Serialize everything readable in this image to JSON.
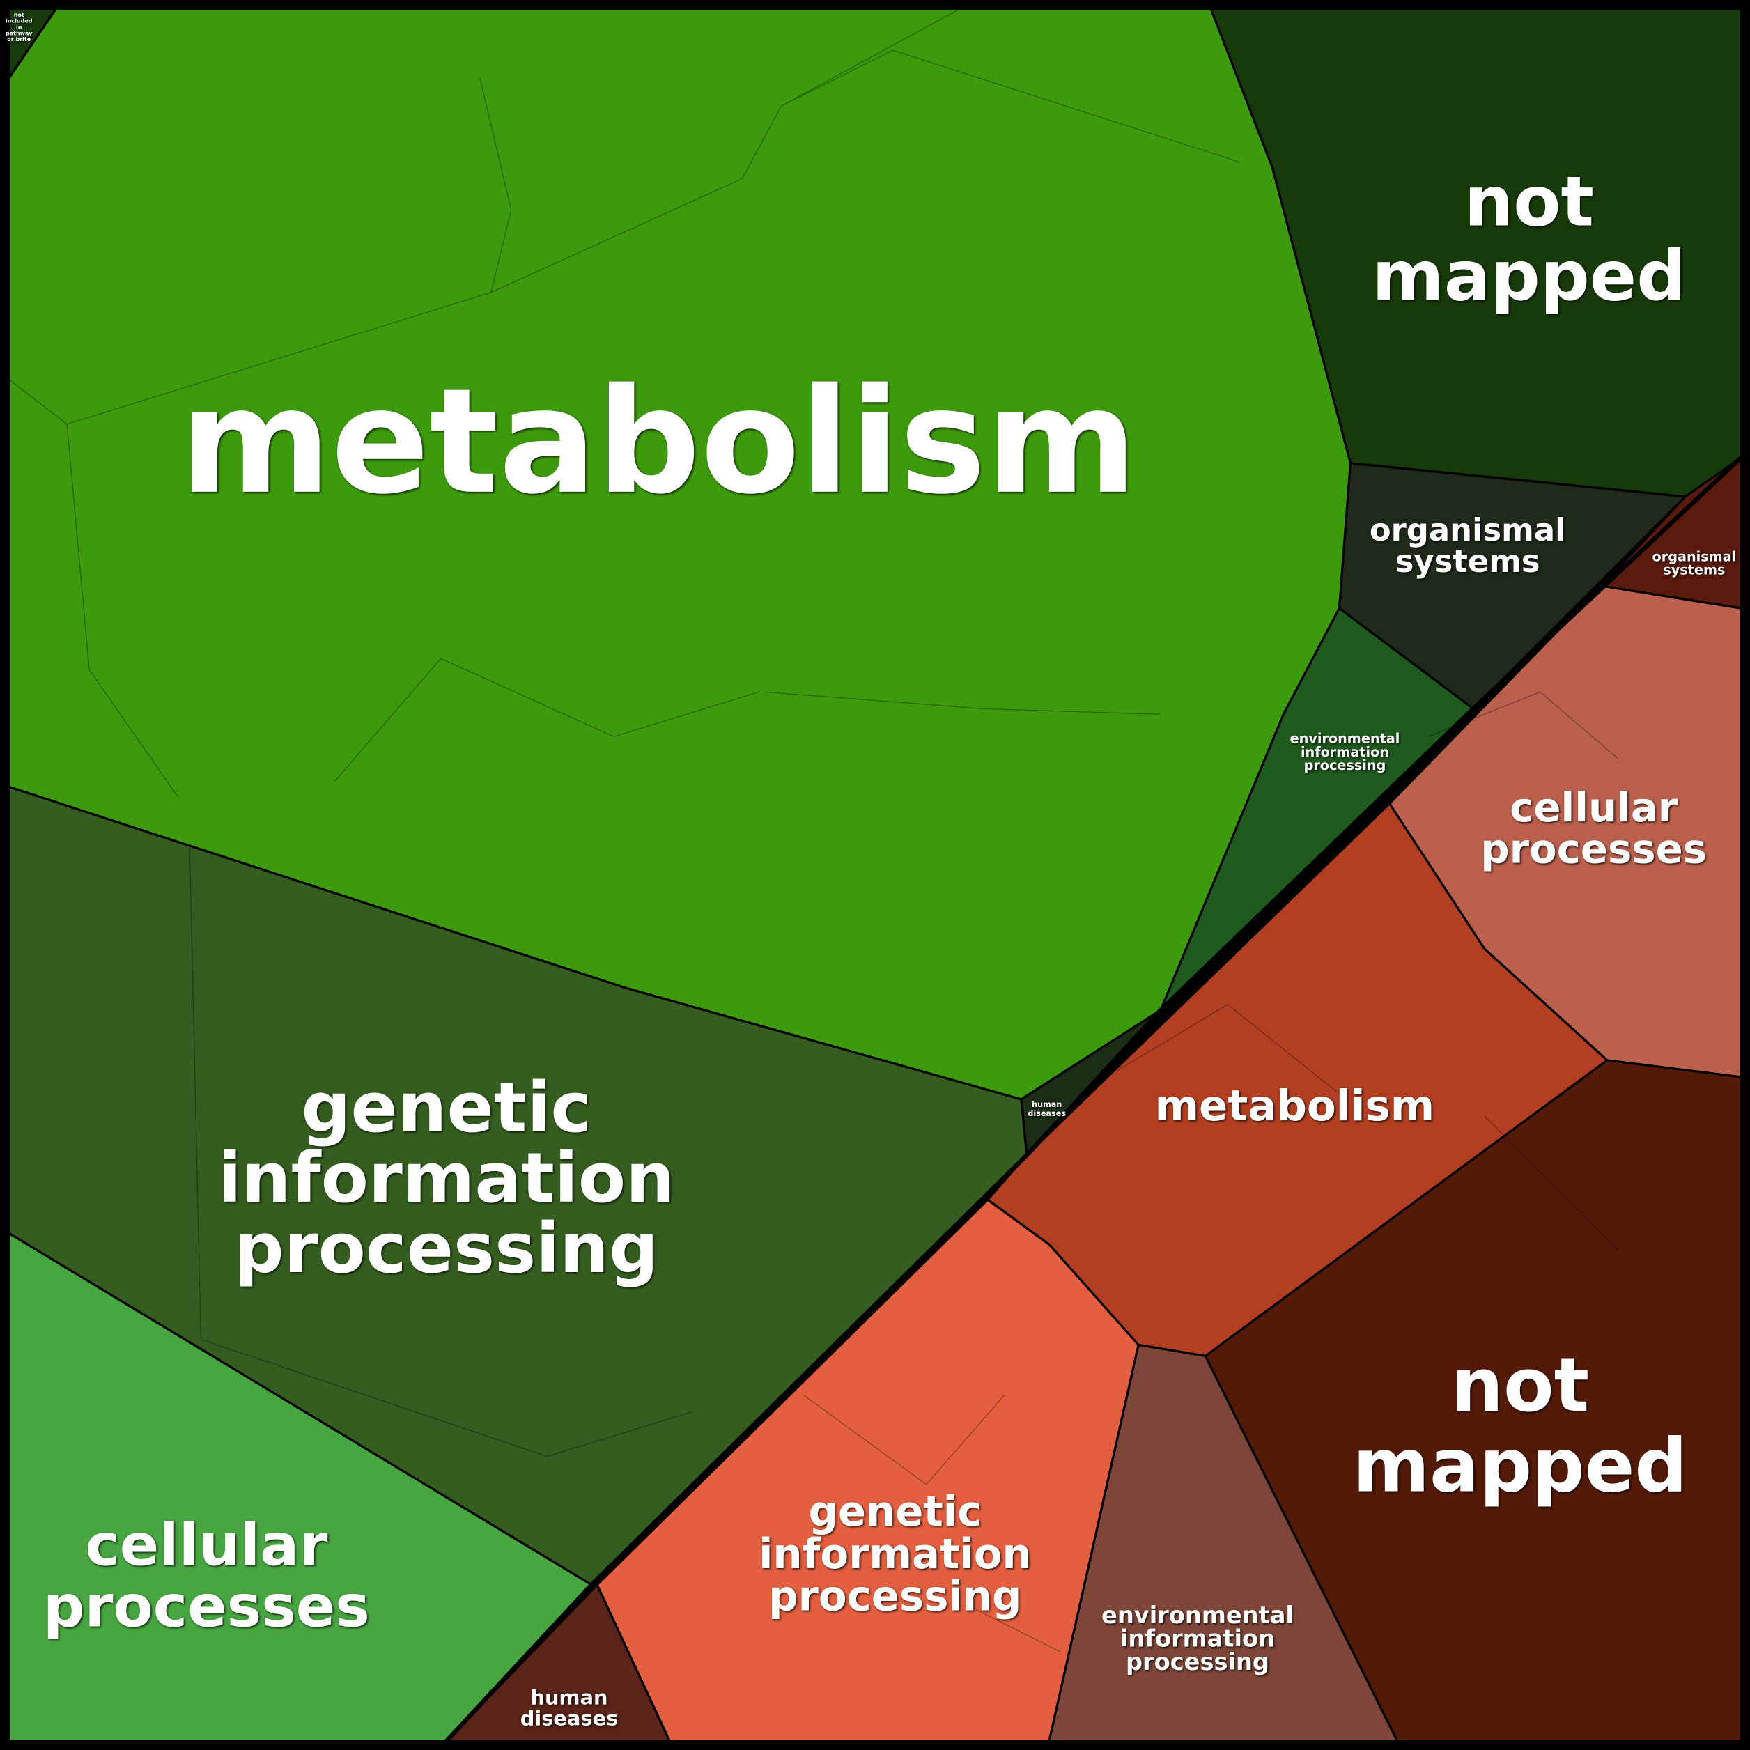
{
  "regions": [
    {
      "label": [
        "metabolism"
      ]
    },
    {
      "label": [
        "not",
        "mapped"
      ]
    },
    {
      "label": [
        "organismal",
        "systems"
      ]
    },
    {
      "label": [
        "environmental",
        "information",
        "processing"
      ]
    },
    {
      "label": [
        "human",
        "diseases"
      ]
    },
    {
      "label": [
        "genetic",
        "information",
        "processing"
      ]
    },
    {
      "label": [
        "cellular",
        "processes"
      ]
    },
    {
      "label": [
        "not",
        "included",
        "in",
        "pathway",
        "or brite"
      ]
    },
    {
      "label": [
        "organismal",
        "systems"
      ]
    },
    {
      "label": [
        "cellular",
        "processes"
      ]
    },
    {
      "label": [
        "metabolism"
      ]
    },
    {
      "label": [
        "not",
        "mapped"
      ]
    },
    {
      "label": [
        "genetic",
        "information",
        "processing"
      ]
    },
    {
      "label": [
        "environmental",
        "information",
        "processing"
      ]
    },
    {
      "label": [
        "human",
        "diseases"
      ]
    }
  ]
}
